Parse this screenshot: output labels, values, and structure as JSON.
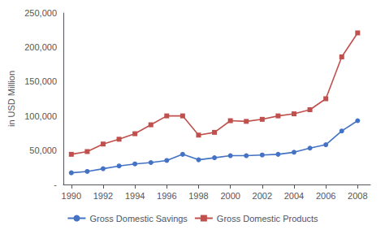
{
  "chart_data": {
    "type": "line",
    "ylabel": "in USD Million",
    "x": [
      1990,
      1991,
      1992,
      1993,
      1994,
      1995,
      1996,
      1997,
      1998,
      1999,
      2000,
      2001,
      2002,
      2003,
      2004,
      2005,
      2006,
      2007,
      2008
    ],
    "series": [
      {
        "name": "Gross Domestic Savings",
        "color": "#4472c4",
        "marker": "circle",
        "values": [
          17000,
          19000,
          23000,
          27000,
          30000,
          32000,
          35000,
          44000,
          36000,
          39000,
          42000,
          42000,
          43000,
          44000,
          47000,
          53000,
          58000,
          78000,
          93000
        ]
      },
      {
        "name": "Gross Domestic Products",
        "color": "#c0504d",
        "marker": "square",
        "values": [
          44000,
          48000,
          59000,
          66000,
          74000,
          87000,
          100000,
          100000,
          72000,
          76000,
          93000,
          92000,
          95000,
          100000,
          103000,
          109000,
          125000,
          186000,
          221000
        ]
      }
    ],
    "xlim": [
      1989.5,
      2008.8
    ],
    "xticks": [
      1990,
      1992,
      1994,
      1996,
      1998,
      2000,
      2002,
      2004,
      2006,
      2008
    ],
    "ylim": [
      0,
      250000
    ],
    "yticks": [
      {
        "value": 0,
        "label": "-"
      },
      {
        "value": 50000,
        "label": "50,000"
      },
      {
        "value": 100000,
        "label": "100,000"
      },
      {
        "value": 150000,
        "label": "150,000"
      },
      {
        "value": 200000,
        "label": "200,000"
      },
      {
        "value": 250000,
        "label": "250,000"
      }
    ],
    "grid": false,
    "legend": "bottom"
  }
}
